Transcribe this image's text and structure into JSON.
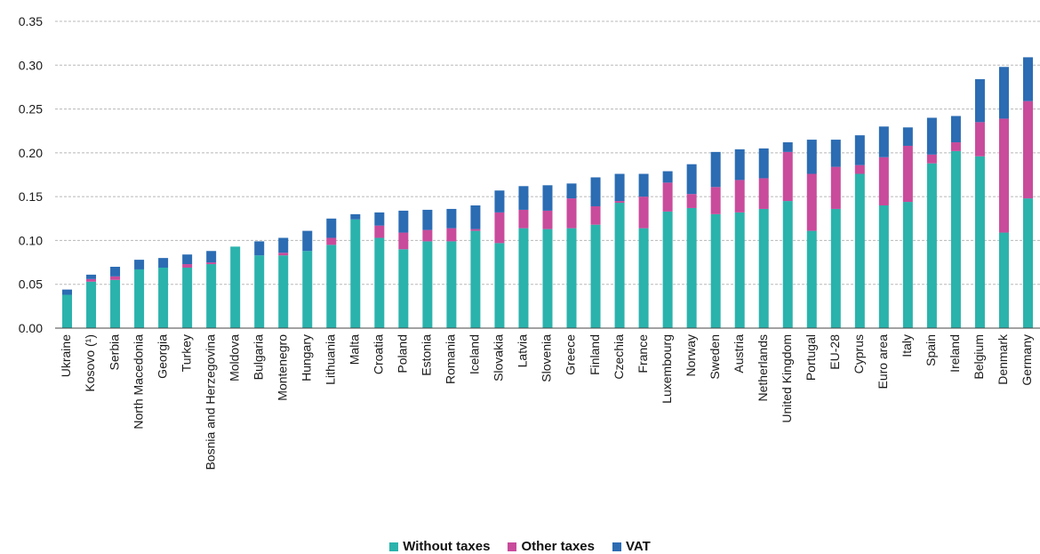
{
  "chart_data": {
    "type": "bar",
    "stacked": true,
    "title": "",
    "xlabel": "",
    "ylabel": "",
    "ylim": [
      0,
      0.35
    ],
    "yticks": [
      "0.00",
      "0.05",
      "0.10",
      "0.15",
      "0.20",
      "0.25",
      "0.30",
      "0.35"
    ],
    "grid": true,
    "legend_position": "bottom-center",
    "categories": [
      "Ukraine",
      "Kosovo (¹)",
      "Serbia",
      "North Macedonia",
      "Georgia",
      "Turkey",
      "Bosnia and Herzegovina",
      "Moldova",
      "Bulgaria",
      "Montenegro",
      "Hungary",
      "Lithuania",
      "Malta",
      "Croatia",
      "Poland",
      "Estonia",
      "Romania",
      "Iceland",
      "Slovakia",
      "Latvia",
      "Slovenia",
      "Greece",
      "Finland",
      "Czechia",
      "France",
      "Luxembourg",
      "Norway",
      "Sweden",
      "Austria",
      "Netherlands",
      "United Kingdom",
      "Portugal",
      "EU-28",
      "Cyprus",
      "Euro area",
      "Italy",
      "Spain",
      "Ireland",
      "Belgium",
      "Denmark",
      "Germany"
    ],
    "series": [
      {
        "name": "Without taxes",
        "color": "#2ab3ac",
        "values": [
          0.038,
          0.053,
          0.055,
          0.067,
          0.069,
          0.069,
          0.073,
          0.093,
          0.083,
          0.083,
          0.088,
          0.095,
          0.124,
          0.103,
          0.09,
          0.099,
          0.099,
          0.111,
          0.097,
          0.114,
          0.113,
          0.114,
          0.118,
          0.143,
          0.114,
          0.133,
          0.137,
          0.13,
          0.132,
          0.136,
          0.145,
          0.111,
          0.136,
          0.176,
          0.14,
          0.144,
          0.188,
          0.202,
          0.196,
          0.109,
          0.148
        ]
      },
      {
        "name": "Other taxes",
        "color": "#c94b9b",
        "values": [
          0.0,
          0.003,
          0.004,
          0.0,
          0.0,
          0.004,
          0.002,
          0.0,
          0.0,
          0.003,
          0.0,
          0.008,
          0.0,
          0.014,
          0.019,
          0.013,
          0.015,
          0.002,
          0.035,
          0.021,
          0.021,
          0.034,
          0.021,
          0.002,
          0.036,
          0.033,
          0.016,
          0.031,
          0.037,
          0.035,
          0.056,
          0.065,
          0.048,
          0.01,
          0.055,
          0.064,
          0.01,
          0.01,
          0.039,
          0.13,
          0.111
        ]
      },
      {
        "name": "VAT",
        "color": "#2b6cb3",
        "values": [
          0.006,
          0.005,
          0.011,
          0.011,
          0.011,
          0.011,
          0.013,
          0.0,
          0.016,
          0.017,
          0.023,
          0.022,
          0.006,
          0.015,
          0.025,
          0.023,
          0.022,
          0.027,
          0.025,
          0.027,
          0.029,
          0.017,
          0.033,
          0.031,
          0.026,
          0.013,
          0.034,
          0.04,
          0.035,
          0.034,
          0.011,
          0.039,
          0.031,
          0.034,
          0.035,
          0.021,
          0.042,
          0.03,
          0.049,
          0.059,
          0.05
        ]
      }
    ]
  }
}
